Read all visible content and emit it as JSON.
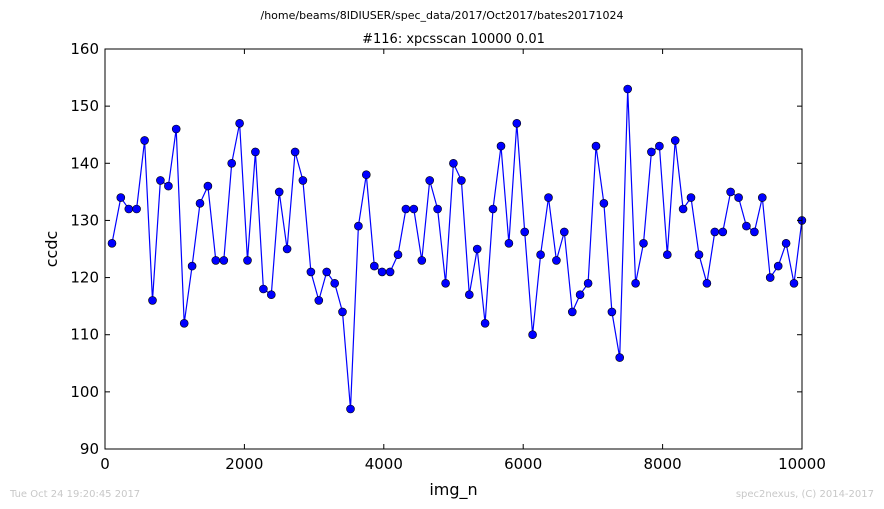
{
  "page": {
    "path": "/home/beams/8IDIUSER/spec_data/2017/Oct2017/bates20171024",
    "timestamp": "Tue Oct 24 19:20:45 2017",
    "credit": "spec2nexus, (C) 2014-2017"
  },
  "chart_data": {
    "type": "line",
    "title": "#116: xpcsscan 10000 0.01",
    "xlabel": "img_n",
    "ylabel": "ccdc",
    "xlim": [
      0,
      10000
    ],
    "ylim": [
      90,
      160
    ],
    "xticks": [
      0,
      2000,
      4000,
      6000,
      8000,
      10000
    ],
    "yticks": [
      90,
      100,
      110,
      120,
      130,
      140,
      150,
      160
    ],
    "grid": false,
    "color": "#0000ff",
    "marker": "circle",
    "x": [
      101,
      227,
      341,
      454,
      568,
      681,
      795,
      909,
      1022,
      1136,
      1249,
      1363,
      1477,
      1590,
      1704,
      1818,
      1931,
      2045,
      2158,
      2272,
      2386,
      2499,
      2613,
      2727,
      2840,
      2954,
      3067,
      3181,
      3295,
      3408,
      3522,
      3636,
      3749,
      3863,
      3976,
      4090,
      4204,
      4317,
      4431,
      4545,
      4658,
      4772,
      4886,
      4999,
      5113,
      5226,
      5340,
      5454,
      5567,
      5681,
      5795,
      5908,
      6022,
      6135,
      6249,
      6363,
      6476,
      6590,
      6704,
      6817,
      6931,
      7044,
      7158,
      7272,
      7385,
      7499,
      7613,
      7726,
      7840,
      7954,
      8067,
      8181,
      8294,
      8408,
      8522,
      8635,
      8749,
      8863,
      8976,
      9090,
      9203,
      9317,
      9431,
      9544,
      9658,
      9772,
      9885,
      9999
    ],
    "y": [
      126,
      134,
      132,
      132,
      144,
      116,
      137,
      136,
      146,
      112,
      122,
      133,
      136,
      123,
      123,
      140,
      147,
      123,
      142,
      118,
      117,
      135,
      125,
      142,
      137,
      121,
      116,
      121,
      119,
      114,
      97,
      129,
      138,
      122,
      121,
      121,
      124,
      132,
      132,
      123,
      137,
      132,
      119,
      140,
      137,
      117,
      125,
      112,
      132,
      143,
      126,
      147,
      128,
      110,
      124,
      134,
      123,
      128,
      114,
      117,
      119,
      143,
      133,
      114,
      106,
      153,
      119,
      126,
      142,
      143,
      124,
      144,
      132,
      134,
      124,
      119,
      128,
      128,
      135,
      134,
      129,
      128,
      134,
      120,
      122,
      126,
      119,
      130
    ]
  }
}
